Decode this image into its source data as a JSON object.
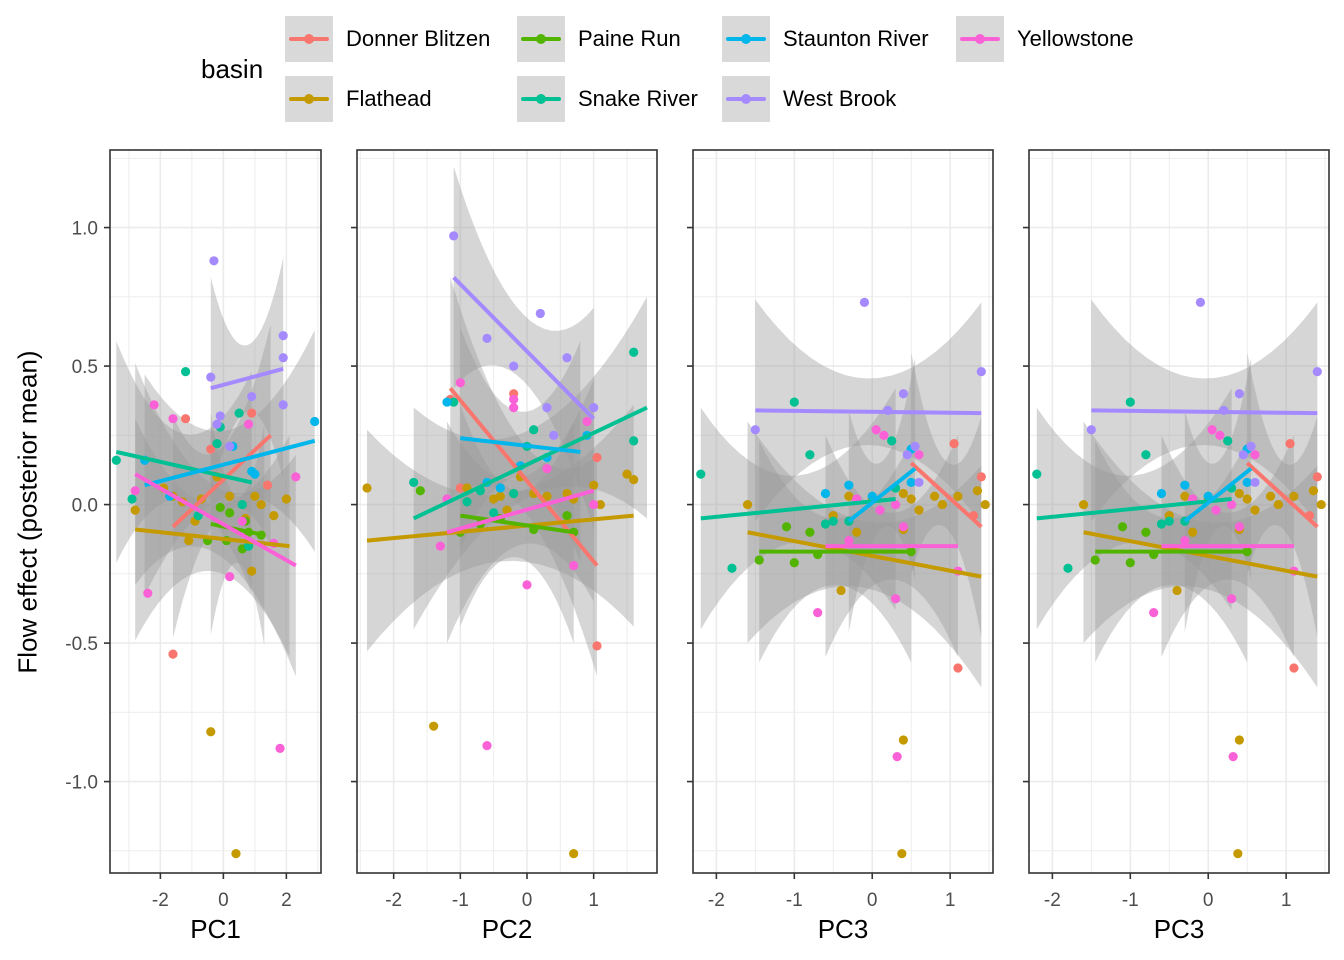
{
  "chart_data": {
    "type": "scatter",
    "title": "",
    "ylabel": "Flow effect (posterior mean)",
    "ylim": [
      -1.33,
      1.28
    ],
    "yticks": [
      -1.0,
      -0.5,
      0.0,
      0.5,
      1.0
    ],
    "ytick_labels": [
      "-1.0",
      "-0.5",
      "0.0",
      "0.5",
      "1.0"
    ],
    "grid": true,
    "legend": {
      "title": "basin",
      "placement": "top",
      "entries": [
        {
          "name": "Donner Blitzen",
          "color": "#F8766D"
        },
        {
          "name": "Flathead",
          "color": "#C49A00"
        },
        {
          "name": "Paine Run",
          "color": "#53B400"
        },
        {
          "name": "Snake River",
          "color": "#00C094"
        },
        {
          "name": "Staunton River",
          "color": "#00B6EB"
        },
        {
          "name": "West Brook",
          "color": "#A58AFF"
        },
        {
          "name": "Yellowstone",
          "color": "#FB61D7"
        }
      ]
    },
    "panels": [
      {
        "xlabel": "PC1",
        "xlim": [
          -3.6,
          3.1
        ],
        "xticks": [
          -2,
          0,
          2
        ],
        "xtick_labels": [
          "-2",
          "0",
          "2"
        ],
        "points": {
          "Donner Blitzen": [
            [
              -1.6,
              -0.54
            ],
            [
              -1.2,
              0.31
            ],
            [
              -0.4,
              0.2
            ],
            [
              0.9,
              0.33
            ],
            [
              1.4,
              0.07
            ]
          ],
          "Flathead": [
            [
              -0.4,
              -0.82
            ],
            [
              0.4,
              -1.26
            ],
            [
              -2.8,
              -0.02
            ],
            [
              -1.9,
              0.06
            ],
            [
              -1.1,
              -0.13
            ],
            [
              -0.7,
              0.02
            ],
            [
              -0.2,
              0.1
            ],
            [
              0.2,
              0.03
            ],
            [
              0.7,
              -0.05
            ],
            [
              1.0,
              0.03
            ],
            [
              1.2,
              0.0
            ],
            [
              1.6,
              -0.04
            ],
            [
              2.0,
              0.02
            ],
            [
              0.9,
              -0.24
            ],
            [
              -1.6,
              0.03
            ],
            [
              -1.3,
              0.01
            ],
            [
              -0.9,
              -0.06
            ]
          ],
          "Paine Run": [
            [
              -0.5,
              -0.13
            ],
            [
              0.1,
              -0.13
            ],
            [
              0.2,
              -0.03
            ],
            [
              0.7,
              -0.06
            ],
            [
              0.8,
              -0.1
            ],
            [
              1.2,
              -0.11
            ],
            [
              0.6,
              -0.16
            ],
            [
              -0.1,
              -0.01
            ]
          ],
          "Snake River": [
            [
              -3.4,
              0.16
            ],
            [
              -2.9,
              0.02
            ],
            [
              -1.2,
              0.48
            ],
            [
              -0.2,
              0.22
            ],
            [
              0.5,
              0.33
            ],
            [
              -0.8,
              -0.04
            ],
            [
              0.8,
              -0.15
            ],
            [
              0.6,
              0.0
            ],
            [
              -0.1,
              0.28
            ]
          ],
          "Staunton River": [
            [
              -2.5,
              0.16
            ],
            [
              -1.7,
              0.03
            ],
            [
              0.3,
              0.21
            ],
            [
              0.9,
              0.12
            ],
            [
              1.0,
              0.11
            ],
            [
              2.9,
              0.3
            ]
          ],
          "West Brook": [
            [
              -0.3,
              0.88
            ],
            [
              -0.4,
              0.46
            ],
            [
              0.9,
              0.39
            ],
            [
              1.9,
              0.36
            ],
            [
              1.9,
              0.53
            ],
            [
              1.9,
              0.61
            ],
            [
              -0.1,
              0.32
            ],
            [
              -0.2,
              0.29
            ],
            [
              0.2,
              0.21
            ]
          ],
          "Yellowstone": [
            [
              -2.8,
              0.05
            ],
            [
              -2.2,
              0.36
            ],
            [
              -1.6,
              0.31
            ],
            [
              -2.4,
              -0.32
            ],
            [
              0.2,
              -0.26
            ],
            [
              1.8,
              -0.88
            ],
            [
              1.6,
              -0.14
            ],
            [
              0.8,
              0.29
            ],
            [
              0.6,
              -0.06
            ],
            [
              2.3,
              0.1
            ]
          ]
        },
        "fits": {
          "Donner Blitzen": [
            [
              -1.6,
              -0.08
            ],
            [
              1.5,
              0.25
            ]
          ],
          "Flathead": [
            [
              -2.8,
              -0.09
            ],
            [
              2.1,
              -0.15
            ]
          ],
          "Paine Run": [
            [
              -0.4,
              -0.07
            ],
            [
              1.3,
              -0.11
            ]
          ],
          "Snake River": [
            [
              -3.4,
              0.19
            ],
            [
              0.9,
              0.08
            ]
          ],
          "Staunton River": [
            [
              -2.5,
              0.07
            ],
            [
              2.9,
              0.23
            ]
          ],
          "West Brook": [
            [
              -0.4,
              0.42
            ],
            [
              1.9,
              0.49
            ]
          ],
          "Yellowstone": [
            [
              -2.8,
              0.11
            ],
            [
              2.3,
              -0.22
            ]
          ]
        }
      },
      {
        "xlabel": "PC2",
        "xlim": [
          -2.55,
          1.95
        ],
        "xticks": [
          -2,
          -1,
          0,
          1
        ],
        "xtick_labels": [
          "-2",
          "-1",
          "0",
          "1"
        ],
        "points": {
          "Donner Blitzen": [
            [
              -1.15,
              0.38
            ],
            [
              -0.2,
              0.4
            ],
            [
              -1.0,
              0.06
            ],
            [
              1.05,
              0.17
            ],
            [
              1.05,
              -0.51
            ]
          ],
          "Flathead": [
            [
              -2.4,
              0.06
            ],
            [
              -1.4,
              -0.8
            ],
            [
              0.7,
              -1.26
            ],
            [
              -0.1,
              0.1
            ],
            [
              -0.9,
              0.06
            ],
            [
              -0.4,
              0.03
            ],
            [
              -0.2,
              0.04
            ],
            [
              0.1,
              0.04
            ],
            [
              0.3,
              0.03
            ],
            [
              0.6,
              0.04
            ],
            [
              0.7,
              0.02
            ],
            [
              1.0,
              0.07
            ],
            [
              1.1,
              0.0
            ],
            [
              1.5,
              0.11
            ],
            [
              1.6,
              0.09
            ],
            [
              -0.5,
              0.02
            ],
            [
              -0.3,
              -0.02
            ]
          ],
          "Paine Run": [
            [
              -1.6,
              0.05
            ],
            [
              -1.0,
              -0.1
            ],
            [
              -0.7,
              -0.07
            ],
            [
              -0.4,
              -0.05
            ],
            [
              0.1,
              -0.09
            ],
            [
              0.6,
              -0.04
            ],
            [
              0.7,
              -0.1
            ]
          ],
          "Snake River": [
            [
              -1.7,
              0.08
            ],
            [
              -0.9,
              0.01
            ],
            [
              -1.1,
              0.37
            ],
            [
              0.0,
              0.21
            ],
            [
              0.1,
              0.27
            ],
            [
              -0.2,
              0.04
            ],
            [
              -0.5,
              -0.03
            ],
            [
              1.6,
              0.55
            ],
            [
              1.6,
              0.23
            ],
            [
              -0.7,
              0.05
            ]
          ],
          "Staunton River": [
            [
              -1.2,
              0.37
            ],
            [
              -0.4,
              0.06
            ],
            [
              -0.1,
              0.14
            ],
            [
              0.3,
              0.17
            ],
            [
              0.9,
              0.25
            ],
            [
              -0.6,
              0.08
            ]
          ],
          "West Brook": [
            [
              -1.1,
              0.97
            ],
            [
              -0.6,
              0.6
            ],
            [
              0.2,
              0.69
            ],
            [
              0.6,
              0.53
            ],
            [
              -0.2,
              0.5
            ],
            [
              0.3,
              0.35
            ],
            [
              1.0,
              0.35
            ],
            [
              0.4,
              0.25
            ]
          ],
          "Yellowstone": [
            [
              -1.0,
              0.44
            ],
            [
              -0.2,
              0.35
            ],
            [
              -0.2,
              0.38
            ],
            [
              0.9,
              0.3
            ],
            [
              0.3,
              0.13
            ],
            [
              -1.2,
              0.02
            ],
            [
              -1.3,
              -0.15
            ],
            [
              0.7,
              -0.22
            ],
            [
              0.0,
              -0.29
            ],
            [
              1.0,
              0.0
            ],
            [
              -0.6,
              -0.87
            ]
          ],
          "West Brook 2": []
        },
        "fits": {
          "Donner Blitzen": [
            [
              -1.15,
              0.42
            ],
            [
              1.05,
              -0.22
            ]
          ],
          "Flathead": [
            [
              -2.4,
              -0.13
            ],
            [
              1.6,
              -0.04
            ]
          ],
          "Paine Run": [
            [
              -1.0,
              -0.04
            ],
            [
              0.7,
              -0.1
            ]
          ],
          "Snake River": [
            [
              -1.7,
              -0.05
            ],
            [
              1.8,
              0.35
            ]
          ],
          "Staunton River": [
            [
              -1.0,
              0.24
            ],
            [
              0.8,
              0.19
            ]
          ],
          "West Brook": [
            [
              -1.1,
              0.82
            ],
            [
              1.0,
              0.31
            ]
          ],
          "Yellowstone": [
            [
              -1.2,
              -0.1
            ],
            [
              1.0,
              0.05
            ]
          ]
        }
      },
      {
        "xlabel": "PC3",
        "xlim": [
          -2.3,
          1.55
        ],
        "xticks": [
          -2,
          -1,
          0,
          1
        ],
        "xtick_labels": [
          "-2",
          "-1",
          "0",
          "1"
        ],
        "points": {
          "Donner Blitzen": [
            [
              1.05,
              0.22
            ],
            [
              1.4,
              0.1
            ],
            [
              1.3,
              -0.04
            ],
            [
              1.1,
              -0.59
            ]
          ],
          "Flathead": [
            [
              -1.6,
              0.0
            ],
            [
              -0.5,
              -0.04
            ],
            [
              -0.3,
              0.03
            ],
            [
              0.0,
              0.02
            ],
            [
              0.4,
              0.04
            ],
            [
              0.5,
              0.02
            ],
            [
              0.8,
              0.03
            ],
            [
              1.1,
              0.03
            ],
            [
              1.35,
              0.05
            ],
            [
              1.45,
              0.0
            ],
            [
              0.6,
              -0.02
            ],
            [
              0.9,
              0.0
            ],
            [
              -0.2,
              -0.1
            ],
            [
              0.4,
              -0.09
            ],
            [
              -0.4,
              -0.31
            ],
            [
              0.4,
              -0.85
            ],
            [
              0.38,
              -1.26
            ]
          ],
          "Paine Run": [
            [
              -1.45,
              -0.2
            ],
            [
              -1.0,
              -0.21
            ],
            [
              -0.7,
              -0.18
            ],
            [
              -1.1,
              -0.08
            ],
            [
              0.5,
              -0.17
            ],
            [
              -0.8,
              -0.1
            ]
          ],
          "Snake River": [
            [
              -2.2,
              0.11
            ],
            [
              -1.8,
              -0.23
            ],
            [
              -1.0,
              0.37
            ],
            [
              -0.8,
              0.18
            ],
            [
              -0.5,
              -0.06
            ],
            [
              0.25,
              0.23
            ],
            [
              0.3,
              0.06
            ],
            [
              -0.3,
              -0.06
            ],
            [
              -0.6,
              -0.07
            ]
          ],
          "Staunton River": [
            [
              -0.3,
              0.07
            ],
            [
              0.0,
              0.03
            ],
            [
              0.5,
              0.08
            ],
            [
              -0.6,
              0.04
            ],
            [
              0.5,
              0.2
            ]
          ],
          "West Brook": [
            [
              -1.5,
              0.27
            ],
            [
              -0.1,
              0.73
            ],
            [
              0.4,
              0.4
            ],
            [
              0.55,
              0.21
            ],
            [
              0.6,
              0.08
            ],
            [
              1.4,
              0.48
            ],
            [
              0.2,
              0.34
            ],
            [
              0.45,
              0.18
            ]
          ],
          "Yellowstone": [
            [
              0.05,
              0.27
            ],
            [
              0.15,
              0.25
            ],
            [
              0.6,
              0.18
            ],
            [
              -0.2,
              0.02
            ],
            [
              0.3,
              0.0
            ],
            [
              0.4,
              -0.08
            ],
            [
              -0.3,
              -0.13
            ],
            [
              0.1,
              -0.02
            ],
            [
              1.1,
              -0.24
            ],
            [
              -0.7,
              -0.39
            ],
            [
              0.3,
              -0.34
            ],
            [
              0.32,
              -0.91
            ]
          ]
        },
        "fits": {
          "Donner Blitzen": [
            [
              0.5,
              0.15
            ],
            [
              1.4,
              -0.08
            ]
          ],
          "Flathead": [
            [
              -1.6,
              -0.1
            ],
            [
              1.4,
              -0.26
            ]
          ],
          "Paine Run": [
            [
              -1.45,
              -0.17
            ],
            [
              0.5,
              -0.17
            ]
          ],
          "Snake River": [
            [
              -2.2,
              -0.05
            ],
            [
              0.3,
              0.02
            ]
          ],
          "Staunton River": [
            [
              -0.3,
              -0.06
            ],
            [
              0.55,
              0.13
            ]
          ],
          "West Brook": [
            [
              -1.5,
              0.34
            ],
            [
              1.4,
              0.33
            ]
          ],
          "Yellowstone": [
            [
              -0.6,
              -0.15
            ],
            [
              1.1,
              -0.15
            ]
          ]
        }
      },
      {
        "xlabel": "PC3",
        "xlim": [
          -2.3,
          1.55
        ],
        "xticks": [
          -2,
          -1,
          0,
          1
        ],
        "xtick_labels": [
          "-2",
          "-1",
          "0",
          "1"
        ],
        "duplicate_of_panel": 3
      }
    ]
  }
}
